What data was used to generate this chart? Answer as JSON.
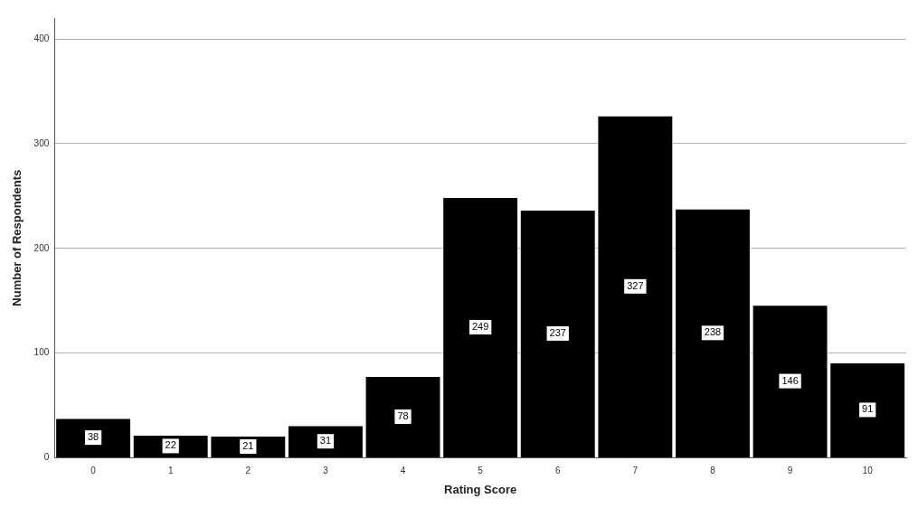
{
  "chart_data": {
    "type": "bar",
    "xlabel": "Rating Score",
    "ylabel": "Number of Respondents",
    "categories": [
      "0",
      "1",
      "2",
      "3",
      "4",
      "5",
      "6",
      "7",
      "8",
      "9",
      "10"
    ],
    "values": [
      38,
      22,
      21,
      31,
      78,
      249,
      237,
      327,
      238,
      146,
      91
    ],
    "color": "#000000",
    "ylim": [
      0,
      420
    ],
    "yticks": [
      0,
      100,
      200,
      300,
      400
    ],
    "grid": "y",
    "data_labels": true
  }
}
